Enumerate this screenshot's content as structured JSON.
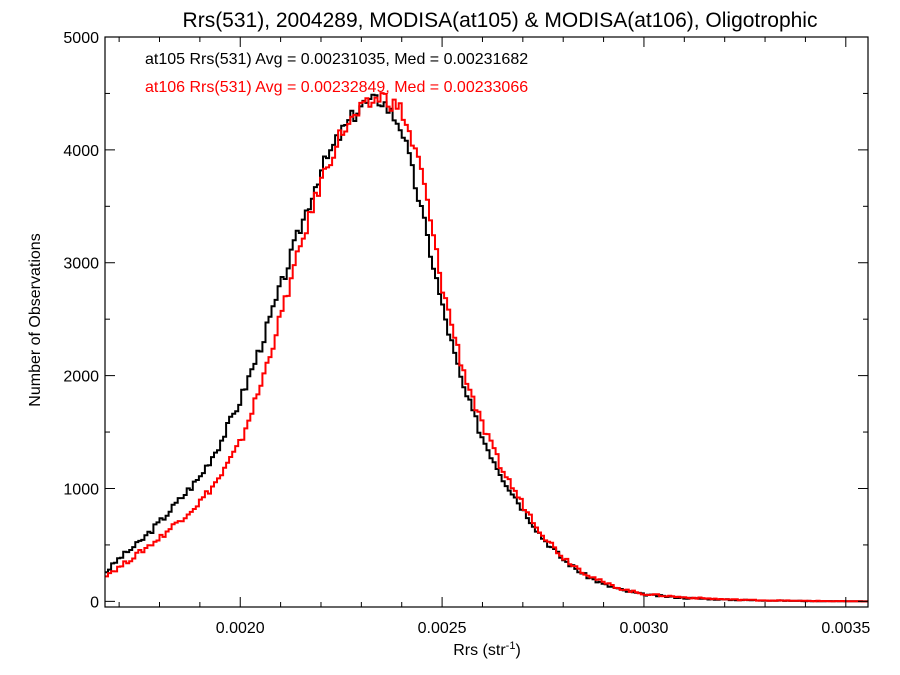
{
  "chart_data": {
    "type": "line",
    "title": "Rrs(531), 2004289, MODISA(at105) & MODISA(at106), Oligotrophic",
    "xlabel": "Rrs (str",
    "xlabel_sup": "-1",
    "xlabel_close": ")",
    "ylabel": "Number of Observations",
    "xlim": [
      0.001665,
      0.003555
    ],
    "ylim": [
      -50,
      5000
    ],
    "x_ticks": [
      {
        "value": 0.002,
        "label": "0.0020"
      },
      {
        "value": 0.0025,
        "label": "0.0025"
      },
      {
        "value": 0.003,
        "label": "0.0030"
      },
      {
        "value": 0.0035,
        "label": "0.0035"
      }
    ],
    "y_ticks": [
      {
        "value": 0,
        "label": "0"
      },
      {
        "value": 1000,
        "label": "1000"
      },
      {
        "value": 2000,
        "label": "2000"
      },
      {
        "value": 3000,
        "label": "3000"
      },
      {
        "value": 4000,
        "label": "4000"
      },
      {
        "value": 5000,
        "label": "5000"
      }
    ],
    "grid": false,
    "legend_position": "top-left",
    "annotations": [
      {
        "text": "at105 Rrs(531) Avg = 0.00231035, Med = 0.00231682",
        "color": "#000000"
      },
      {
        "text": "at106 Rrs(531) Avg = 0.00232849, Med = 0.00233066",
        "color": "#ff0000"
      }
    ],
    "series": [
      {
        "color": "#000000",
        "x": [
          0.001665,
          0.0017,
          0.00175,
          0.0018,
          0.00185,
          0.0019,
          0.00195,
          0.002,
          0.00205,
          0.0021,
          0.00215,
          0.0022,
          0.00225,
          0.0023,
          0.00235,
          0.0024,
          0.00245,
          0.0025,
          0.00255,
          0.0026,
          0.00265,
          0.0027,
          0.00275,
          0.0028,
          0.00285,
          0.0029,
          0.00295,
          0.003,
          0.0031,
          0.0032,
          0.0033,
          0.0034,
          0.00355
        ],
        "y": [
          250,
          380,
          520,
          700,
          900,
          1100,
          1400,
          1780,
          2250,
          2780,
          3320,
          3820,
          4150,
          4400,
          4450,
          4200,
          3450,
          2620,
          1920,
          1450,
          1100,
          820,
          560,
          370,
          240,
          150,
          95,
          60,
          30,
          15,
          8,
          3,
          0
        ]
      },
      {
        "color": "#ff0000",
        "x": [
          0.001665,
          0.0017,
          0.00175,
          0.0018,
          0.00185,
          0.0019,
          0.00195,
          0.002,
          0.00205,
          0.0021,
          0.00215,
          0.0022,
          0.00225,
          0.0023,
          0.00235,
          0.0024,
          0.00245,
          0.0025,
          0.00255,
          0.0026,
          0.00265,
          0.0027,
          0.00275,
          0.0028,
          0.00285,
          0.0029,
          0.00295,
          0.003,
          0.0031,
          0.0032,
          0.0033,
          0.0034,
          0.00355
        ],
        "y": [
          230,
          300,
          430,
          560,
          720,
          880,
          1100,
          1400,
          1900,
          2520,
          3150,
          3720,
          4150,
          4350,
          4480,
          4350,
          3800,
          2800,
          2080,
          1550,
          1160,
          860,
          590,
          390,
          260,
          165,
          105,
          65,
          35,
          18,
          9,
          4,
          0
        ]
      }
    ]
  }
}
